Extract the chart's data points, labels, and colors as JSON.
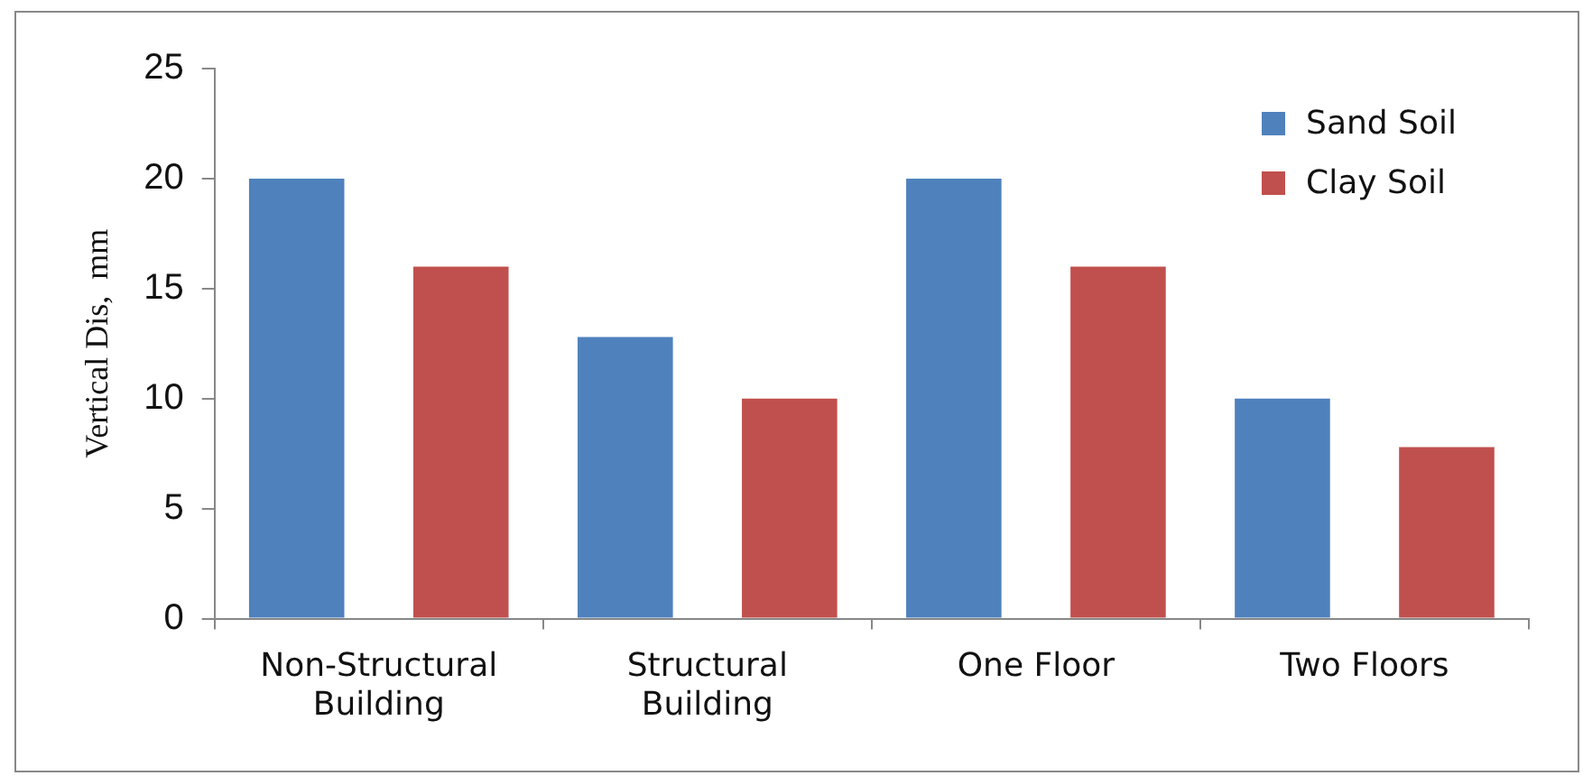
{
  "chart_data": {
    "type": "bar",
    "ylabel": "Vertical Dis,  mm",
    "categories": [
      "Non-Structural Building",
      "Structural Building",
      "One Floor",
      "Two Floors"
    ],
    "series": [
      {
        "name": "Sand Soil",
        "color": "#4f81bd",
        "values": [
          20,
          12.8,
          20,
          10
        ]
      },
      {
        "name": "Clay Soil",
        "color": "#c0504d",
        "values": [
          16,
          10,
          16,
          7.8
        ]
      }
    ],
    "ylim": [
      0,
      25
    ],
    "yticks": [
      0,
      5,
      10,
      15,
      20,
      25
    ],
    "grid": false,
    "legend": "top right"
  }
}
